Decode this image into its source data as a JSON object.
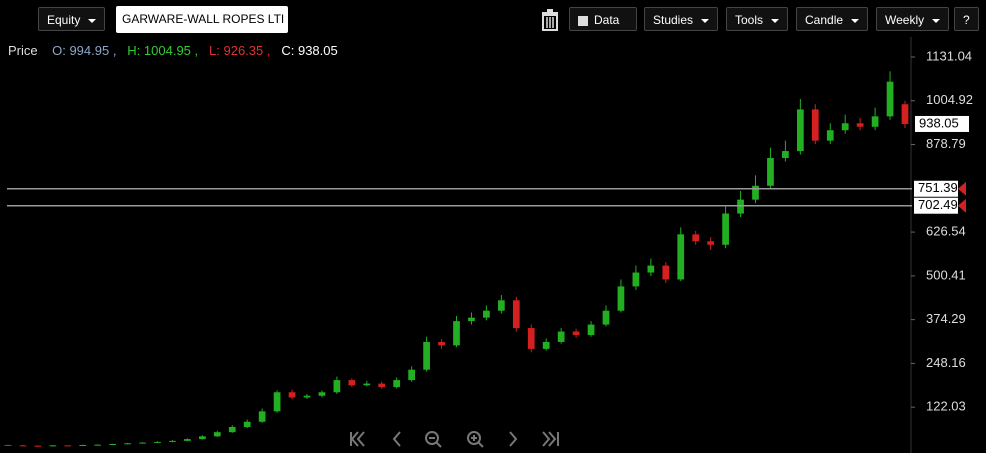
{
  "toolbar": {
    "instrument_type": "Equity",
    "symbol": "GARWARE-WALL ROPES LTI",
    "buttons": [
      "Data",
      "Studies",
      "Tools",
      "Candle",
      "Weekly",
      "?"
    ]
  },
  "chart_data": {
    "type": "candlestick",
    "price_label": "Price",
    "ohlc_labels": {
      "open": "O:",
      "high": "H:",
      "low": "L:",
      "close": "C:"
    },
    "separator": ",",
    "up_color": "#22b022",
    "down_color": "#d42020",
    "open": [
      13,
      12,
      11,
      10,
      12,
      11,
      13,
      14,
      16,
      18,
      20,
      22,
      25,
      30,
      38,
      50,
      65,
      80,
      110,
      165,
      150,
      155,
      165,
      200,
      185,
      190,
      180,
      200,
      230,
      310,
      300,
      370,
      380,
      400,
      430,
      350,
      290,
      310,
      340,
      330,
      360,
      400,
      470,
      510,
      530,
      490,
      620,
      600,
      590,
      680,
      720,
      760,
      840,
      860,
      980,
      890,
      920,
      940,
      930,
      960,
      994.95
    ],
    "high": [
      14,
      13,
      12,
      13,
      12,
      14,
      15,
      17,
      19,
      21,
      24,
      27,
      32,
      41,
      54,
      70,
      86,
      118,
      170,
      172,
      160,
      170,
      210,
      205,
      198,
      196,
      208,
      240,
      325,
      318,
      385,
      395,
      415,
      445,
      440,
      360,
      320,
      350,
      348,
      370,
      415,
      490,
      530,
      550,
      540,
      640,
      630,
      612,
      700,
      745,
      790,
      870,
      890,
      1010,
      995,
      940,
      965,
      955,
      985,
      1090,
      1004.95
    ],
    "low": [
      11,
      10,
      9,
      9,
      10,
      10,
      12,
      13,
      15,
      17,
      19,
      21,
      24,
      29,
      36,
      48,
      62,
      77,
      106,
      145,
      146,
      150,
      160,
      180,
      182,
      175,
      176,
      195,
      225,
      290,
      295,
      360,
      372,
      392,
      340,
      280,
      285,
      305,
      322,
      325,
      355,
      395,
      460,
      500,
      480,
      485,
      590,
      575,
      580,
      670,
      710,
      750,
      830,
      850,
      880,
      880,
      910,
      920,
      920,
      950,
      926.35
    ],
    "close": [
      12,
      11,
      10,
      12,
      11,
      13,
      14,
      16,
      18,
      20,
      22,
      25,
      30,
      38,
      50,
      65,
      80,
      110,
      165,
      150,
      155,
      165,
      200,
      185,
      190,
      180,
      200,
      230,
      310,
      300,
      370,
      380,
      400,
      430,
      350,
      290,
      310,
      340,
      330,
      360,
      400,
      470,
      510,
      530,
      490,
      620,
      600,
      590,
      680,
      720,
      760,
      840,
      860,
      980,
      890,
      920,
      940,
      930,
      960,
      1060,
      938.05
    ],
    "ylim": [
      -10,
      1180
    ],
    "yticks": [
      122.03,
      248.16,
      374.29,
      500.41,
      626.54,
      878.79,
      1004.92,
      1131.04
    ],
    "hlines": [
      751.39,
      702.49
    ]
  }
}
